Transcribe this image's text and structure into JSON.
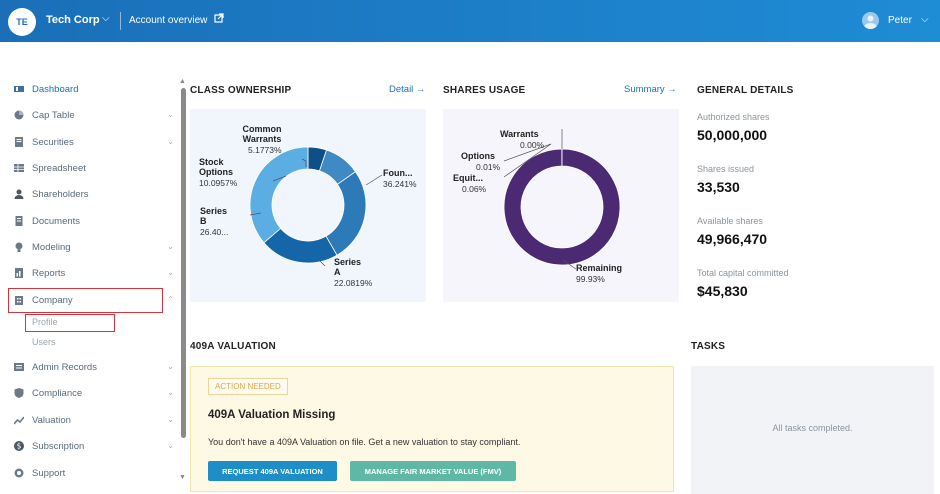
{
  "header": {
    "org_initials": "TE",
    "org_name": "Tech Corp",
    "account_link": "Account overview",
    "user_name": "Peter"
  },
  "sidebar": {
    "items": [
      {
        "label": "Dashboard",
        "icon": "dashboard-icon"
      },
      {
        "label": "Cap Table",
        "icon": "pie-icon"
      },
      {
        "label": "Securities",
        "icon": "certificate-icon"
      },
      {
        "label": "Spreadsheet",
        "icon": "spreadsheet-icon"
      },
      {
        "label": "Shareholders",
        "icon": "person-icon"
      },
      {
        "label": "Documents",
        "icon": "documents-icon"
      },
      {
        "label": "Modeling",
        "icon": "bulb-icon"
      },
      {
        "label": "Reports",
        "icon": "reports-icon"
      },
      {
        "label": "Company",
        "icon": "building-icon"
      },
      {
        "label": "Admin Records",
        "icon": "records-icon"
      },
      {
        "label": "Compliance",
        "icon": "shield-icon"
      },
      {
        "label": "Valuation",
        "icon": "valuation-icon"
      },
      {
        "label": "Subscription",
        "icon": "dollar-icon"
      },
      {
        "label": "Support",
        "icon": "support-icon"
      }
    ],
    "company_sub": [
      "Profile",
      "Users"
    ]
  },
  "class_ownership": {
    "title": "CLASS OWNERSHIP",
    "link": "Detail",
    "chart_data": {
      "type": "pie",
      "categories": [
        "Common Warrants",
        "Stock Options",
        "Series B",
        "Series A",
        "Foun..."
      ],
      "values": [
        5.1773,
        10.0957,
        26.4,
        22.0819,
        36.241
      ],
      "labels": [
        "5.1773%",
        "10.0957%",
        "26.40...",
        "22.0819%",
        "36.241%"
      ],
      "colors": [
        "#0d4f86",
        "#3f8ac4",
        "#2c7bb8",
        "#1466a8",
        "#5aaee3"
      ]
    }
  },
  "shares_usage": {
    "title": "SHARES USAGE",
    "link": "Summary",
    "chart_data": {
      "type": "pie",
      "categories": [
        "Warrants",
        "Options",
        "Equit...",
        "Remaining"
      ],
      "values": [
        0.0,
        0.01,
        0.06,
        99.93
      ],
      "labels": [
        "0.00%",
        "0.01%",
        "0.06%",
        "99.93%"
      ],
      "colors": [
        "#2f1a55",
        "#3a2369",
        "#4a2f7d",
        "#4b2a73"
      ]
    }
  },
  "general_details": {
    "title": "GENERAL DETAILS",
    "rows": [
      {
        "label": "Authorized shares",
        "value": "50,000,000"
      },
      {
        "label": "Shares issued",
        "value": "33,530"
      },
      {
        "label": "Available shares",
        "value": "49,966,470"
      },
      {
        "label": "Total capital committed",
        "value": "$45,830"
      }
    ]
  },
  "valuation": {
    "title": "409A VALUATION",
    "badge": "ACTION NEEDED",
    "card_title": "409A Valuation Missing",
    "description": "You don't have a 409A Valuation on file. Get a new valuation to stay compliant.",
    "primary_button": "REQUEST 409A VALUATION",
    "secondary_button": "MANAGE FAIR MARKET VALUE (FMV)"
  },
  "tasks": {
    "title": "TASKS",
    "empty_text": "All tasks completed."
  }
}
